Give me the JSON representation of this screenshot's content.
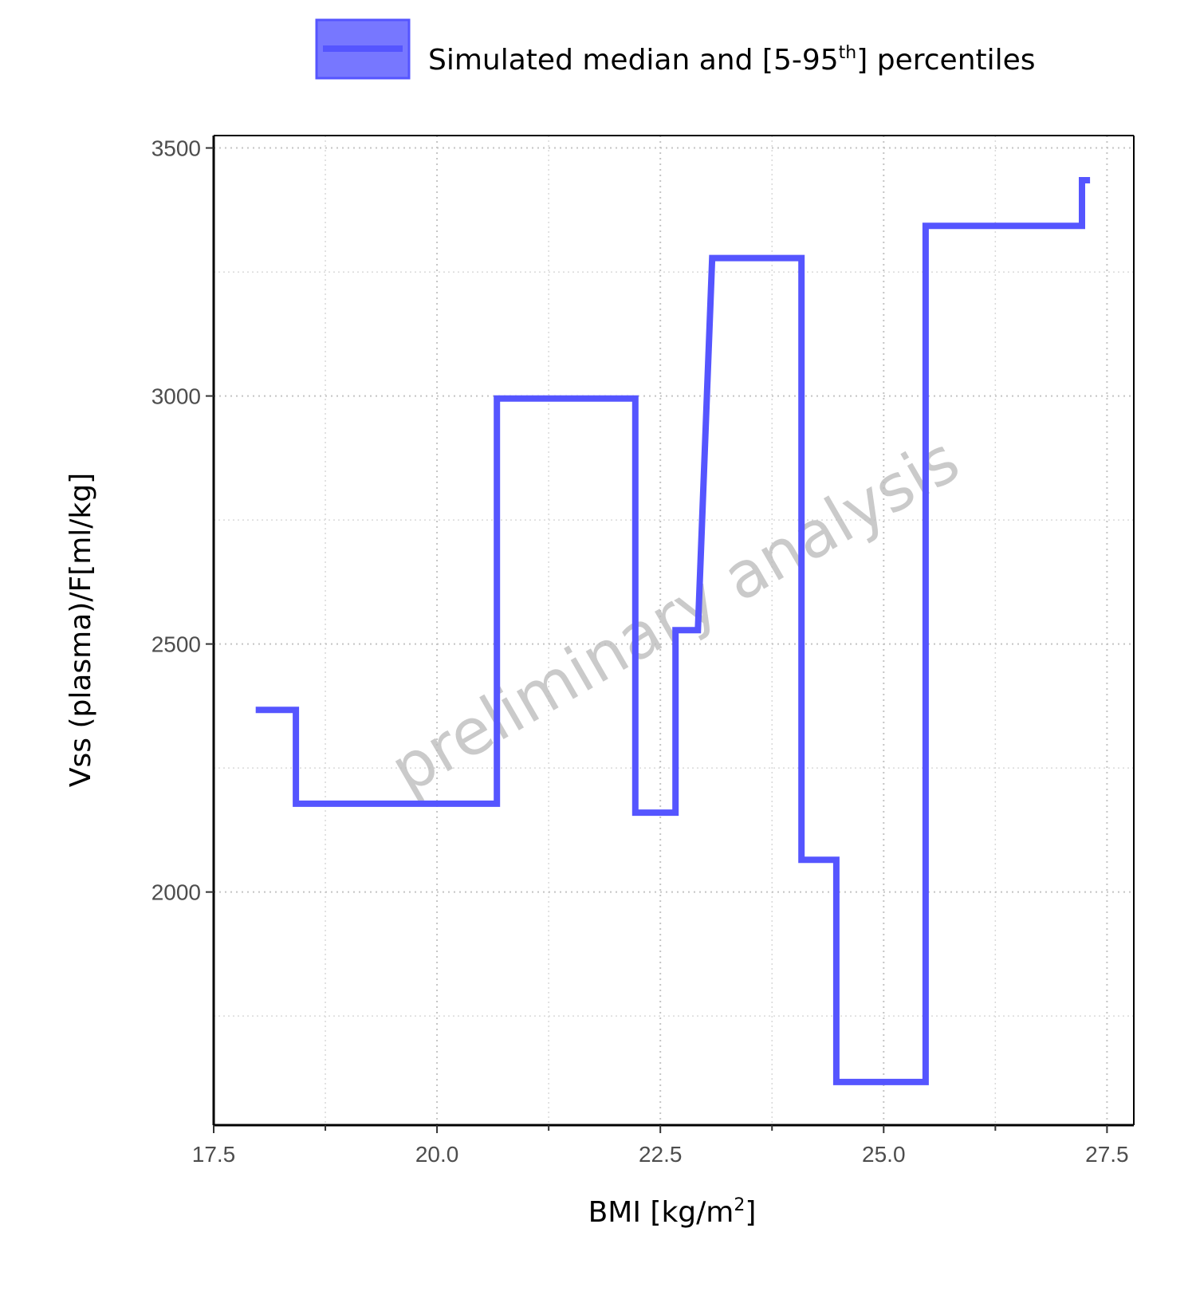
{
  "chart_data": {
    "type": "line",
    "step": true,
    "x_label_main": "BMI [kg/m",
    "x_label_sup": "2",
    "x_label_end": "]",
    "y_label": "Vss (plasma)/F[ml/kg]",
    "xlim": [
      17.5,
      27.8
    ],
    "ylim": [
      1530,
      3525
    ],
    "x_ticks": [
      17.5,
      20.0,
      22.5,
      25.0,
      27.5
    ],
    "x_tick_labels": [
      "17.5",
      "20.0",
      "22.5",
      "25.0",
      "27.5"
    ],
    "y_ticks": [
      2000,
      2500,
      3000,
      3500
    ],
    "y_tick_labels": [
      "2000",
      "2500",
      "3000",
      "3500"
    ],
    "x_minor": [
      18.75,
      21.25,
      23.75,
      26.25
    ],
    "y_minor": [
      1750,
      2250,
      2750,
      3250
    ],
    "grid": true,
    "legend_position": "top",
    "legend": {
      "label_prefix": "Simulated median and [5-95",
      "label_sup": "th",
      "label_suffix": "] percentiles"
    },
    "watermark": "preliminary analysis",
    "color": "#5555ff",
    "series": [
      {
        "name": "Simulated median and [5-95th] percentiles",
        "points": [
          [
            17.97,
            2367
          ],
          [
            18.42,
            2367
          ],
          [
            18.42,
            2178
          ],
          [
            20.67,
            2178
          ],
          [
            20.67,
            2995
          ],
          [
            22.22,
            2995
          ],
          [
            22.22,
            2160
          ],
          [
            22.67,
            2160
          ],
          [
            22.67,
            2528
          ],
          [
            22.92,
            2528
          ],
          [
            23.08,
            3278
          ],
          [
            24.08,
            3278
          ],
          [
            24.08,
            2065
          ],
          [
            24.47,
            2065
          ],
          [
            24.47,
            1617
          ],
          [
            25.47,
            1617
          ],
          [
            25.47,
            3343
          ],
          [
            27.22,
            3343
          ],
          [
            27.22,
            3435
          ],
          [
            27.31,
            3435
          ]
        ]
      }
    ]
  }
}
